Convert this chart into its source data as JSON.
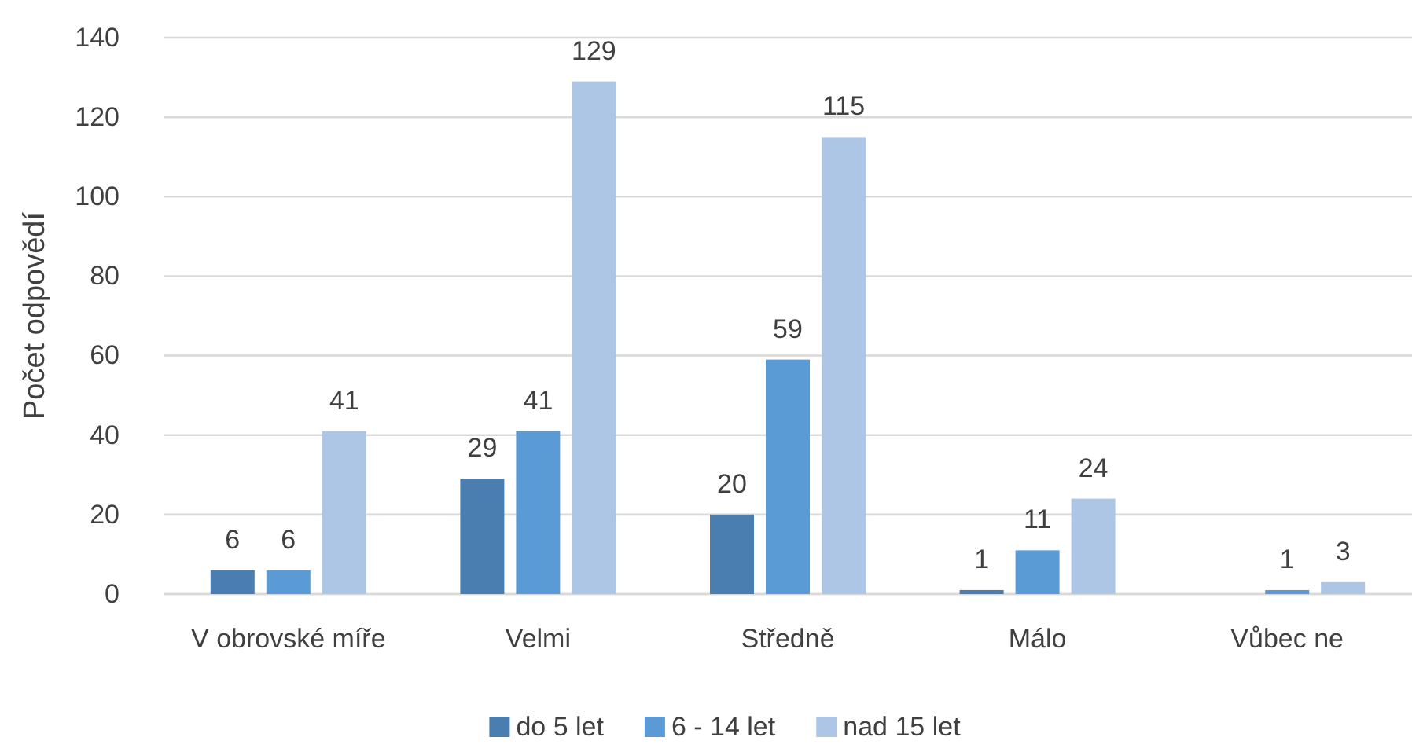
{
  "chart_data": {
    "type": "bar",
    "ylabel": "Počet odpovědí",
    "categories": [
      "V obrovské míře",
      "Velmi",
      "Středně",
      "Málo",
      "Vůbec ne"
    ],
    "series": [
      {
        "name": "do 5 let",
        "color": "#4a7eb0",
        "values": [
          6,
          29,
          20,
          1,
          null
        ]
      },
      {
        "name": "6 - 14 let",
        "color": "#5b9bd5",
        "values": [
          6,
          41,
          59,
          11,
          1
        ]
      },
      {
        "name": "nad 15 let",
        "color": "#adc6e5",
        "values": [
          41,
          129,
          115,
          24,
          3
        ]
      }
    ],
    "ylim": [
      0,
      140
    ],
    "yticks": [
      0,
      20,
      40,
      60,
      80,
      100,
      120,
      140
    ],
    "grid": "y",
    "legend": "bottom",
    "data_labels": true
  }
}
